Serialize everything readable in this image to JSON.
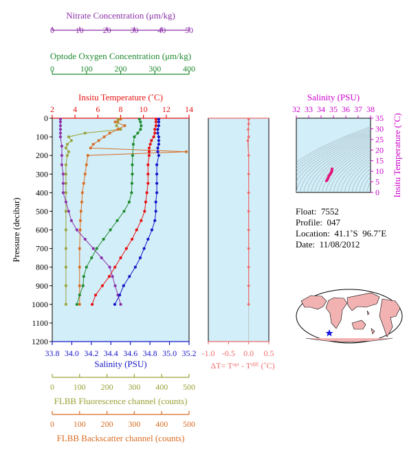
{
  "colors": {
    "nitrate": "#8B2FA8",
    "oxygen": "#1E8A2E",
    "temperature": "#E81010",
    "salinity": "#1515C8",
    "fluorescence": "#9AA035",
    "backscatter": "#D86A20",
    "delta_t": "#F06868",
    "plot_bg": "#D2EEF8",
    "ts_curve": "#E0157A",
    "ts_label": "#CC00CC"
  },
  "info": {
    "float": "Float:  7552",
    "profile": "Profile:  047",
    "location": "Location:  41.1˚S  96.7˚E",
    "date": "Date:  11/08/2012"
  },
  "chart_data": [
    {
      "type": "line",
      "panel": "main-profile",
      "pressure_axis": {
        "label": "Pressure (decibar)",
        "ylim": [
          0,
          1200
        ],
        "ticks": [
          0,
          100,
          200,
          300,
          400,
          500,
          600,
          700,
          800,
          900,
          1000,
          1100,
          1200
        ]
      },
      "axes": {
        "nitrate": {
          "label": "Nitrate Concentration (μm/kg)",
          "xlim": [
            0,
            50
          ],
          "ticks": [
            0,
            10,
            20,
            30,
            40,
            50
          ]
        },
        "oxygen": {
          "label": "Optode Oxygen Concentration (μm/kg)",
          "xlim": [
            0,
            400
          ],
          "ticks": [
            0,
            100,
            200,
            300,
            400
          ]
        },
        "temperature": {
          "label": "Insitu Temperature (˚C)",
          "xlim": [
            2,
            14
          ],
          "ticks": [
            2,
            4,
            6,
            8,
            10,
            12,
            14
          ]
        },
        "salinity": {
          "label": "Salinity (PSU)",
          "xlim": [
            33.8,
            35.2
          ],
          "ticks": [
            "33.8",
            "34.0",
            "34.2",
            "34.4",
            "34.6",
            "34.8",
            "35.0",
            "35.2"
          ]
        },
        "fluorescence": {
          "label": "FLBB Fluorescence channel (counts)",
          "xlim": [
            0,
            500
          ],
          "ticks": [
            0,
            100,
            200,
            300,
            400,
            500
          ]
        },
        "backscatter": {
          "label": "FLBB Backscatter channel (counts)",
          "xlim": [
            0,
            500
          ],
          "ticks": [
            0,
            100,
            200,
            300,
            400,
            500
          ]
        }
      },
      "series": [
        {
          "key": "temperature",
          "axis": "temperature",
          "points": [
            [
              11.1,
              5
            ],
            [
              11.1,
              20
            ],
            [
              11.1,
              40
            ],
            [
              11.0,
              60
            ],
            [
              11.0,
              80
            ],
            [
              10.9,
              100
            ],
            [
              10.7,
              120
            ],
            [
              10.6,
              140
            ],
            [
              10.5,
              160
            ],
            [
              10.5,
              180
            ],
            [
              10.5,
              200
            ],
            [
              10.4,
              250
            ],
            [
              10.4,
              300
            ],
            [
              10.4,
              350
            ],
            [
              10.3,
              400
            ],
            [
              10.2,
              450
            ],
            [
              10.1,
              500
            ],
            [
              9.8,
              550
            ],
            [
              9.4,
              600
            ],
            [
              9.0,
              650
            ],
            [
              8.5,
              700
            ],
            [
              8.0,
              750
            ],
            [
              7.5,
              800
            ],
            [
              7.0,
              850
            ],
            [
              6.4,
              900
            ],
            [
              5.8,
              950
            ],
            [
              5.5,
              1000
            ]
          ]
        },
        {
          "key": "salinity",
          "axis": "salinity",
          "points": [
            [
              34.89,
              5
            ],
            [
              34.89,
              20
            ],
            [
              34.89,
              40
            ],
            [
              34.88,
              60
            ],
            [
              34.88,
              80
            ],
            [
              34.89,
              100
            ],
            [
              34.89,
              120
            ],
            [
              34.89,
              140
            ],
            [
              34.88,
              160
            ],
            [
              34.88,
              180
            ],
            [
              34.89,
              200
            ],
            [
              34.87,
              250
            ],
            [
              34.87,
              300
            ],
            [
              34.87,
              350
            ],
            [
              34.87,
              400
            ],
            [
              34.86,
              450
            ],
            [
              34.86,
              500
            ],
            [
              34.85,
              550
            ],
            [
              34.82,
              600
            ],
            [
              34.78,
              650
            ],
            [
              34.74,
              700
            ],
            [
              34.7,
              750
            ],
            [
              34.65,
              800
            ],
            [
              34.59,
              850
            ],
            [
              34.53,
              900
            ],
            [
              34.49,
              950
            ],
            [
              34.44,
              1000
            ]
          ]
        },
        {
          "key": "oxygen",
          "axis": "oxygen",
          "points": [
            [
              255,
              5
            ],
            [
              258,
              20
            ],
            [
              260,
              40
            ],
            [
              258,
              60
            ],
            [
              250,
              80
            ],
            [
              240,
              100
            ],
            [
              237,
              140
            ],
            [
              235,
              200
            ],
            [
              234,
              250
            ],
            [
              234,
              300
            ],
            [
              233,
              350
            ],
            [
              232,
              400
            ],
            [
              225,
              450
            ],
            [
              210,
              500
            ],
            [
              190,
              550
            ],
            [
              170,
              600
            ],
            [
              150,
              650
            ],
            [
              130,
              700
            ],
            [
              115,
              750
            ],
            [
              100,
              800
            ],
            [
              92,
              850
            ],
            [
              90,
              900
            ],
            [
              80,
              950
            ],
            [
              72,
              1000
            ]
          ]
        },
        {
          "key": "nitrate",
          "axis": "nitrate",
          "points": [
            [
              3,
              5
            ],
            [
              3,
              20
            ],
            [
              3,
              40
            ],
            [
              3,
              60
            ],
            [
              3,
              80
            ],
            [
              3,
              100
            ],
            [
              3.5,
              150
            ],
            [
              3.5,
              200
            ],
            [
              3.5,
              250
            ],
            [
              4,
              300
            ],
            [
              4,
              350
            ],
            [
              4,
              400
            ],
            [
              5,
              450
            ],
            [
              6,
              500
            ],
            [
              7,
              550
            ],
            [
              9,
              600
            ],
            [
              12,
              650
            ],
            [
              15,
              700
            ],
            [
              18,
              750
            ],
            [
              21,
              800
            ],
            [
              22,
              850
            ],
            [
              23,
              900
            ],
            [
              24,
              950
            ],
            [
              25,
              1000
            ]
          ]
        },
        {
          "key": "fluorescence",
          "axis": "fluorescence",
          "points": [
            [
              240,
              5
            ],
            [
              240,
              20
            ],
            [
              235,
              40
            ],
            [
              250,
              60
            ],
            [
              120,
              80
            ],
            [
              60,
              100
            ],
            [
              70,
              120
            ],
            [
              55,
              140
            ],
            [
              50,
              160
            ],
            [
              60,
              180
            ],
            [
              55,
              200
            ],
            [
              50,
              250
            ],
            [
              50,
              300
            ],
            [
              50,
              350
            ],
            [
              50,
              400
            ],
            [
              50,
              500
            ],
            [
              50,
              600
            ],
            [
              50,
              700
            ],
            [
              50,
              800
            ],
            [
              50,
              900
            ],
            [
              50,
              1000
            ]
          ]
        },
        {
          "key": "backscatter",
          "axis": "backscatter",
          "points": [
            [
              250,
              5
            ],
            [
              230,
              20
            ],
            [
              265,
              40
            ],
            [
              240,
              60
            ],
            [
              210,
              80
            ],
            [
              190,
              100
            ],
            [
              170,
              120
            ],
            [
              150,
              140
            ],
            [
              140,
              160
            ],
            [
              490,
              180
            ],
            [
              130,
              200
            ],
            [
              125,
              250
            ],
            [
              120,
              300
            ],
            [
              115,
              350
            ],
            [
              110,
              400
            ],
            [
              108,
              450
            ],
            [
              105,
              500
            ],
            [
              103,
              550
            ],
            [
              102,
              600
            ],
            [
              100,
              700
            ],
            [
              100,
              800
            ],
            [
              100,
              900
            ],
            [
              100,
              1000
            ]
          ]
        }
      ]
    },
    {
      "type": "line",
      "panel": "delta-t",
      "xlabel": "ΔT= Tᵒᵖᵗ - Tˢᴮᴱ (˚C)",
      "xlim": [
        -1.0,
        0.5
      ],
      "ticks": [
        "-1.0",
        "-0.5",
        "0.0",
        "0.5"
      ],
      "ylim": [
        0,
        1200
      ],
      "points": [
        [
          0.0,
          5
        ],
        [
          0.0,
          30
        ],
        [
          -0.01,
          60
        ],
        [
          0.0,
          100
        ],
        [
          -0.02,
          120
        ],
        [
          0.0,
          200
        ],
        [
          0.0,
          300
        ],
        [
          0.0,
          400
        ],
        [
          0.0,
          500
        ],
        [
          0.0,
          600
        ],
        [
          0.0,
          700
        ],
        [
          0.0,
          800
        ],
        [
          0.0,
          900
        ],
        [
          0.0,
          1000
        ]
      ]
    },
    {
      "type": "line",
      "panel": "ts-diagram",
      "xlabel": "Salinity (PSU)",
      "ylabel": "Insitu Temperature (˚C)",
      "xlim": [
        32,
        38
      ],
      "ylim": [
        0,
        35
      ],
      "xticks": [
        32,
        33,
        34,
        35,
        36,
        37,
        38
      ],
      "yticks": [
        0,
        5,
        10,
        15,
        20,
        25,
        30,
        35
      ],
      "points": [
        [
          34.44,
          5.5
        ],
        [
          34.55,
          6.5
        ],
        [
          34.65,
          8.0
        ],
        [
          34.74,
          8.5
        ],
        [
          34.82,
          9.4
        ],
        [
          34.86,
          10.1
        ],
        [
          34.87,
          10.4
        ],
        [
          34.89,
          10.9
        ],
        [
          34.89,
          11.1
        ]
      ]
    }
  ]
}
